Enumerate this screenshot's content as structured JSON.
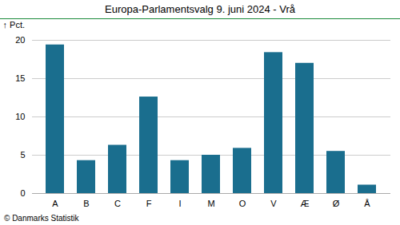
{
  "chart_data": {
    "type": "bar",
    "title": "Europa-Parlamentsvalg 9. juni 2024 - Vrå",
    "categories": [
      "A",
      "B",
      "C",
      "F",
      "I",
      "M",
      "O",
      "V",
      "Æ",
      "Ø",
      "Å"
    ],
    "values": [
      19.4,
      4.3,
      6.3,
      12.6,
      4.3,
      5.0,
      5.9,
      18.4,
      17.0,
      5.5,
      1.1
    ],
    "color": "#1a6e8e",
    "ylabel": "Pct.",
    "caption": "© Danmarks Statistik",
    "ylim": [
      0,
      20
    ],
    "yticks": [
      0,
      5,
      10,
      15,
      20
    ],
    "grid": true
  }
}
